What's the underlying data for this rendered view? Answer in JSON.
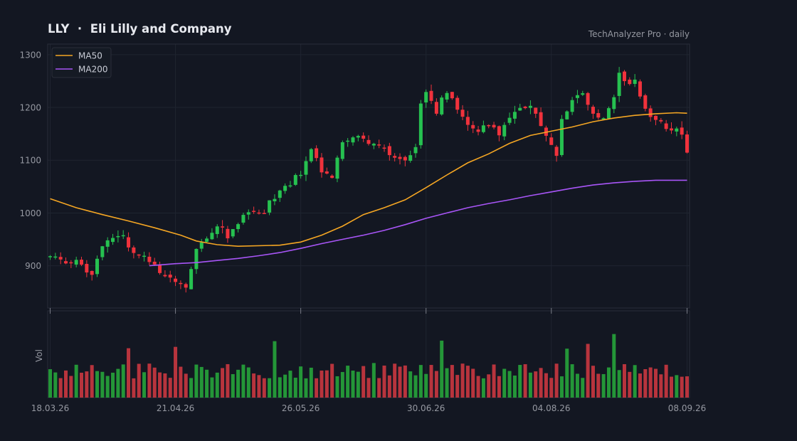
{
  "header": {
    "ticker": "LLY",
    "separator": "·",
    "company": "Eli Lilly and Company",
    "source": "TechAnalyzer Pro · daily"
  },
  "colors": {
    "background": "#131722",
    "grid": "#1f2430",
    "up": "#26c150",
    "down": "#f0323c",
    "volume_up": "#249638",
    "volume_down": "#b8343d",
    "ma50": "#f5a623",
    "ma200": "#a855f7",
    "text": "#9598a1"
  },
  "chart_data": {
    "type": "candlestick",
    "title": "LLY · Eli Lilly and Company",
    "price_axis": {
      "range": [
        820,
        1320
      ],
      "ticks": [
        900,
        1000,
        1100,
        1200,
        1300
      ]
    },
    "date_ticks": [
      "18.03.26",
      "21.04.26",
      "26.05.26",
      "30.06.26",
      "04.08.26",
      "08.09.26"
    ],
    "volume_axis_label": "Vol",
    "legend": {
      "placement": "top-left",
      "entries": [
        {
          "name": "MA50",
          "color": "#f5a623"
        },
        {
          "name": "MA200",
          "color": "#a855f7"
        }
      ]
    },
    "grid": true,
    "close_anchors": [
      [
        0,
        915
      ],
      [
        6,
        905
      ],
      [
        8,
        882
      ],
      [
        10,
        940
      ],
      [
        14,
        955
      ],
      [
        16,
        925
      ],
      [
        18,
        918
      ],
      [
        20,
        900
      ],
      [
        24,
        870
      ],
      [
        26,
        855
      ],
      [
        28,
        925
      ],
      [
        32,
        980
      ],
      [
        34,
        955
      ],
      [
        36,
        985
      ],
      [
        38,
        1000
      ],
      [
        40,
        995
      ],
      [
        44,
        1040
      ],
      [
        48,
        1075
      ],
      [
        50,
        1120
      ],
      [
        52,
        1080
      ],
      [
        54,
        1070
      ],
      [
        56,
        1135
      ],
      [
        58,
        1150
      ],
      [
        60,
        1140
      ],
      [
        62,
        1130
      ],
      [
        66,
        1110
      ],
      [
        68,
        1100
      ],
      [
        70,
        1125
      ],
      [
        71,
        1205
      ],
      [
        72,
        1225
      ],
      [
        74,
        1195
      ],
      [
        76,
        1230
      ],
      [
        78,
        1200
      ],
      [
        80,
        1165
      ],
      [
        82,
        1150
      ],
      [
        84,
        1170
      ],
      [
        86,
        1150
      ],
      [
        88,
        1180
      ],
      [
        90,
        1200
      ],
      [
        92,
        1210
      ],
      [
        94,
        1160
      ],
      [
        96,
        1125
      ],
      [
        97,
        1115
      ],
      [
        98,
        1180
      ],
      [
        100,
        1215
      ],
      [
        102,
        1230
      ],
      [
        104,
        1190
      ],
      [
        106,
        1175
      ],
      [
        108,
        1220
      ],
      [
        109,
        1270
      ],
      [
        110,
        1245
      ],
      [
        112,
        1255
      ],
      [
        114,
        1200
      ],
      [
        116,
        1175
      ],
      [
        118,
        1160
      ],
      [
        120,
        1165
      ],
      [
        121,
        1150
      ],
      [
        122,
        1120
      ]
    ],
    "ma50_points": [
      [
        0,
        1027
      ],
      [
        5,
        1010
      ],
      [
        10,
        997
      ],
      [
        15,
        985
      ],
      [
        20,
        972
      ],
      [
        25,
        958
      ],
      [
        28,
        947
      ],
      [
        32,
        940
      ],
      [
        36,
        937
      ],
      [
        44,
        939
      ],
      [
        48,
        945
      ],
      [
        52,
        958
      ],
      [
        56,
        975
      ],
      [
        60,
        997
      ],
      [
        64,
        1010
      ],
      [
        68,
        1025
      ],
      [
        72,
        1048
      ],
      [
        76,
        1072
      ],
      [
        80,
        1095
      ],
      [
        84,
        1112
      ],
      [
        88,
        1132
      ],
      [
        92,
        1147
      ],
      [
        96,
        1155
      ],
      [
        100,
        1163
      ],
      [
        104,
        1173
      ],
      [
        108,
        1180
      ],
      [
        112,
        1185
      ],
      [
        116,
        1188
      ],
      [
        120,
        1190
      ],
      [
        122,
        1189
      ]
    ],
    "ma200_points": [
      [
        19,
        900
      ],
      [
        24,
        904
      ],
      [
        28,
        906
      ],
      [
        32,
        910
      ],
      [
        36,
        914
      ],
      [
        40,
        919
      ],
      [
        44,
        925
      ],
      [
        48,
        933
      ],
      [
        52,
        942
      ],
      [
        56,
        950
      ],
      [
        60,
        958
      ],
      [
        64,
        967
      ],
      [
        68,
        978
      ],
      [
        72,
        990
      ],
      [
        76,
        1000
      ],
      [
        80,
        1010
      ],
      [
        84,
        1018
      ],
      [
        88,
        1025
      ],
      [
        92,
        1033
      ],
      [
        96,
        1040
      ],
      [
        100,
        1047
      ],
      [
        104,
        1053
      ],
      [
        108,
        1057
      ],
      [
        112,
        1060
      ],
      [
        116,
        1062
      ],
      [
        122,
        1062
      ]
    ]
  }
}
